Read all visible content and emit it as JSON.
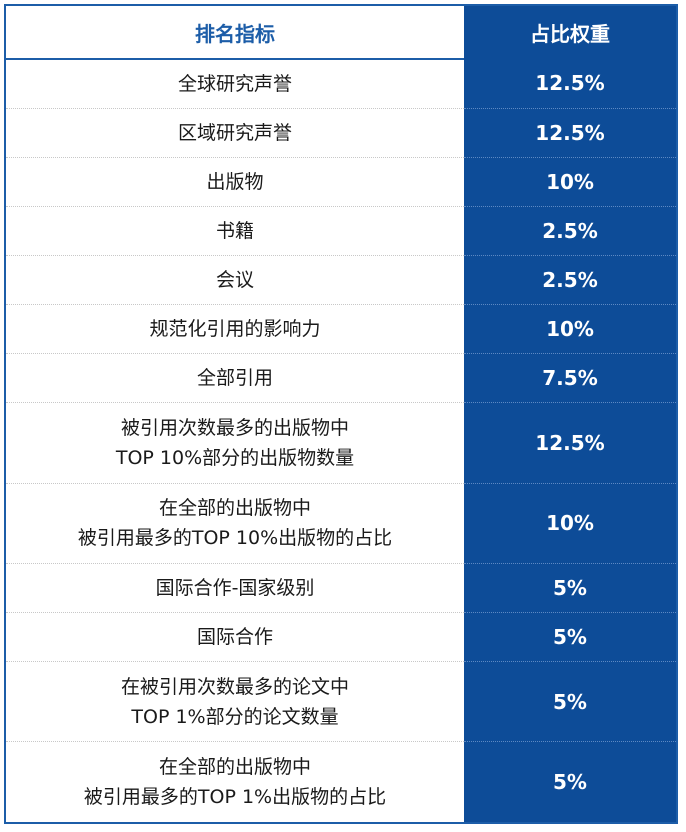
{
  "header": {
    "indicator": "排名指标",
    "weight": "占比权重"
  },
  "rows": [
    {
      "indicator": [
        "全球研究声誉"
      ],
      "weight": "12.5%"
    },
    {
      "indicator": [
        "区域研究声誉"
      ],
      "weight": "12.5%"
    },
    {
      "indicator": [
        "出版物"
      ],
      "weight": "10%"
    },
    {
      "indicator": [
        "书籍"
      ],
      "weight": "2.5%"
    },
    {
      "indicator": [
        "会议"
      ],
      "weight": "2.5%"
    },
    {
      "indicator": [
        "规范化引用的影响力"
      ],
      "weight": "10%"
    },
    {
      "indicator": [
        "全部引用"
      ],
      "weight": "7.5%"
    },
    {
      "indicator": [
        "被引用次数最多的出版物中",
        "TOP 10%部分的出版物数量"
      ],
      "weight": "12.5%"
    },
    {
      "indicator": [
        "在全部的出版物中",
        "被引用最多的TOP 10%出版物的占比"
      ],
      "weight": "10%"
    },
    {
      "indicator": [
        "国际合作-国家级别"
      ],
      "weight": "5%"
    },
    {
      "indicator": [
        "国际合作"
      ],
      "weight": "5%"
    },
    {
      "indicator": [
        "在被引用次数最多的论文中",
        "TOP 1%部分的论文数量"
      ],
      "weight": "5%"
    },
    {
      "indicator": [
        "在全部的出版物中",
        "被引用最多的TOP 1%出版物的占比"
      ],
      "weight": "5%"
    }
  ]
}
